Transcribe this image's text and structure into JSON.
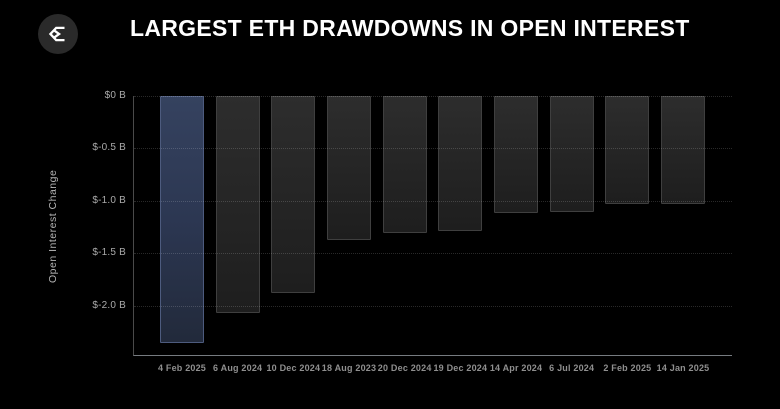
{
  "header": {
    "title": "LARGEST ETH DRAWDOWNS IN OPEN INTEREST",
    "logo_icon": "sigma-diamond-icon"
  },
  "chart_data": {
    "type": "bar",
    "title": "LARGEST ETH DRAWDOWNS IN OPEN INTEREST",
    "xlabel": "",
    "ylabel": "Open Interest Change",
    "unit": "billions USD",
    "categories": [
      "4 Feb 2025",
      "6 Aug 2024",
      "10 Dec 2024",
      "18 Aug 2023",
      "20 Dec 2024",
      "19 Dec 2024",
      "14 Apr 2024",
      "6 Jul 2024",
      "2 Feb 2025",
      "14 Jan 2025"
    ],
    "values": [
      -2.36,
      -2.07,
      -1.88,
      -1.37,
      -1.31,
      -1.29,
      -1.12,
      -1.11,
      -1.03,
      -1.03
    ],
    "highlight_index": 0,
    "ylim": [
      -2.48,
      0
    ],
    "yticks": [
      {
        "value": 0,
        "label": "$0 B"
      },
      {
        "value": -0.5,
        "label": "$-0.5 B"
      },
      {
        "value": -1.0,
        "label": "$-1.0 B"
      },
      {
        "value": -1.5,
        "label": "$-1.5 B"
      },
      {
        "value": -2.0,
        "label": "$-2.0 B"
      }
    ],
    "grid": "horizontal-dotted",
    "legend": "none",
    "colors": {
      "background": "#000000",
      "bar": "#262626",
      "highlight_bar": "#2f3b58",
      "grid": "rgba(255,255,255,0.16)",
      "axis_bottom": "#767b80",
      "axis_left": "#4a4a4a",
      "tick_text": "#aaaaaa",
      "x_tick_text": "#8f8f8f",
      "title_text": "#ffffff"
    }
  }
}
